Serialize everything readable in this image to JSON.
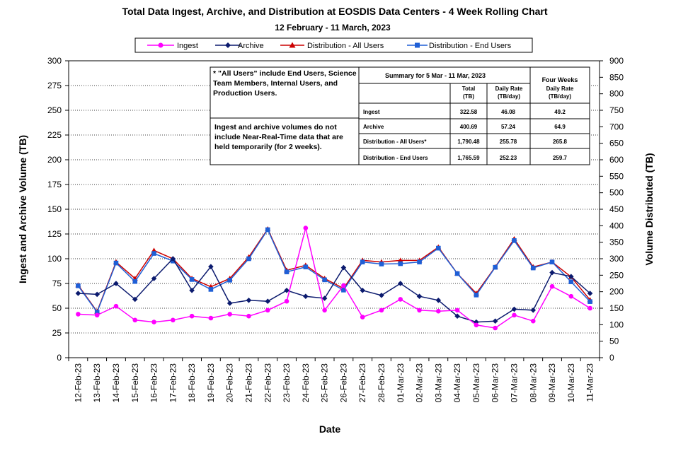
{
  "chart_data": {
    "type": "line",
    "title": "Total Data Ingest, Archive, and  Distribution at EOSDIS Data Centers - 4 Week Rolling Chart",
    "subtitle": "12  February   -  11  March,  2023",
    "xlabel": "Date",
    "ylabel": "Ingest and Archive Volume (TB)",
    "y2label": "Volume Distributed (TB)",
    "ylim": [
      0,
      300
    ],
    "y_ticks": [
      "0",
      "25",
      "50",
      "75",
      "100",
      "125",
      "150",
      "175",
      "200",
      "225",
      "250",
      "275",
      "300"
    ],
    "y2lim": [
      0,
      900
    ],
    "y2_ticks": [
      "0",
      "50",
      "100",
      "150",
      "200",
      "250",
      "300",
      "350",
      "400",
      "450",
      "500",
      "550",
      "600",
      "650",
      "700",
      "750",
      "800",
      "850",
      "900"
    ],
    "grid": "horizontal dotted",
    "legend_position": "top",
    "categories": [
      "12-Feb-23",
      "13-Feb-23",
      "14-Feb-23",
      "15-Feb-23",
      "16-Feb-23",
      "17-Feb-23",
      "18-Feb-23",
      "19-Feb-23",
      "20-Feb-23",
      "21-Feb-23",
      "22-Feb-23",
      "23-Feb-23",
      "24-Feb-23",
      "25-Feb-23",
      "26-Feb-23",
      "27-Feb-23",
      "28-Feb-23",
      "01-Mar-23",
      "02-Mar-23",
      "03-Mar-23",
      "04-Mar-23",
      "05-Mar-23",
      "06-Mar-23",
      "07-Mar-23",
      "08-Mar-23",
      "09-Mar-23",
      "10-Mar-23",
      "11-Mar-23"
    ],
    "series": [
      {
        "name": "Ingest",
        "axis": "left",
        "color": "#ff00ff",
        "marker": "circle",
        "values": [
          44,
          43,
          52,
          38,
          36,
          38,
          42,
          40,
          44,
          42,
          48,
          57,
          131,
          48,
          73,
          41,
          48,
          59,
          48,
          47,
          48,
          33,
          30,
          43,
          37,
          72,
          62,
          50
        ]
      },
      {
        "name": "Archive",
        "axis": "left",
        "color": "#0b1a6e",
        "marker": "diamond",
        "values": [
          65,
          64,
          75,
          59,
          80,
          100,
          68,
          92,
          55,
          58,
          57,
          68,
          62,
          60,
          91,
          68,
          63,
          75,
          62,
          58,
          42,
          36,
          37,
          49,
          48,
          86,
          82,
          65
        ]
      },
      {
        "name": "Distribution - All Users",
        "axis": "right",
        "color": "#cc0000",
        "marker": "triangle",
        "values": [
          220,
          140,
          290,
          240,
          325,
          300,
          240,
          215,
          240,
          305,
          390,
          265,
          280,
          240,
          210,
          295,
          290,
          295,
          295,
          335,
          255,
          195,
          275,
          360,
          275,
          290,
          245,
          175
        ]
      },
      {
        "name": "Distribution - End Users",
        "axis": "right",
        "color": "#1f5fd6",
        "marker": "square",
        "values": [
          218,
          138,
          287,
          231,
          316,
          293,
          237,
          207,
          235,
          300,
          388,
          260,
          275,
          236,
          205,
          290,
          284,
          285,
          290,
          332,
          255,
          190,
          274,
          355,
          272,
          290,
          230,
          170
        ]
      }
    ],
    "note_box_1": "* \"All Users\" include End Users, Science Team Members,  Internal Users, and Production Users.",
    "note_box_2": "Ingest and archive volumes do not include Near-Real-Time data that are held temporarily (for 2 weeks).",
    "summary_table": {
      "title": "Summary  for  5  Mar   -  11  Mar,  2023",
      "four_weeks_title": "Four Weeks",
      "col_total": "Total (TB)",
      "col_daily": "Daily Rate (TB/day)",
      "col_four_daily": "Daily Rate (TB/day)",
      "rows": [
        {
          "label": "Ingest",
          "total": "322.58",
          "daily": "46.08",
          "four": "49.2"
        },
        {
          "label": "Archive",
          "total": "400.69",
          "daily": "57.24",
          "four": "64.9"
        },
        {
          "label": "Distribution - All Users*",
          "total": "1,790.48",
          "daily": "255.78",
          "four": "265.8"
        },
        {
          "label": "Distribution - End Users",
          "total": "1,765.59",
          "daily": "252.23",
          "four": "259.7"
        }
      ]
    }
  }
}
